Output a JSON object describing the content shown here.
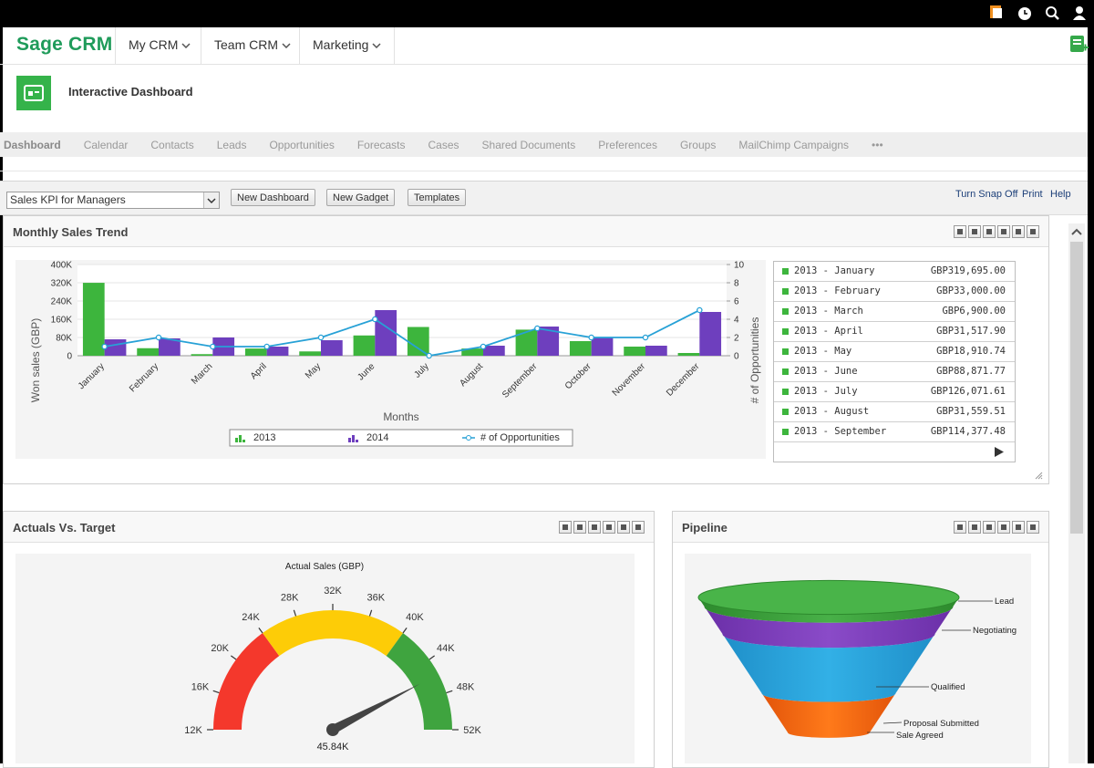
{
  "nav": {
    "logo": "Sage CRM",
    "menus": [
      "My CRM",
      "Team CRM",
      "Marketing"
    ]
  },
  "page_header": {
    "title": "Interactive Dashboard"
  },
  "tabs": [
    "Dashboard",
    "Calendar",
    "Contacts",
    "Leads",
    "Opportunities",
    "Forecasts",
    "Cases",
    "Shared Documents",
    "Preferences",
    "Groups",
    "MailChimp Campaigns",
    "•••"
  ],
  "toolbar": {
    "dashboard_select": "Sales KPI for Managers",
    "buttons": [
      "New Dashboard",
      "New Gadget",
      "Templates"
    ],
    "links": [
      "Turn Snap Off",
      "Print",
      "Help"
    ]
  },
  "gadgets": [
    {
      "title": "Monthly Sales Trend",
      "chart": {
        "type": "bar",
        "x_label": "Months",
        "y_label": "Won sales (GBP)",
        "y2_label": "# of Opportunities",
        "categories": [
          "January",
          "February",
          "March",
          "April",
          "May",
          "June",
          "July",
          "August",
          "September",
          "October",
          "November",
          "December"
        ],
        "series": [
          {
            "name": "2013",
            "color": "#3db53d",
            "values": [
              319695,
              33000,
              6900,
              31517.9,
              18910.74,
              88871.77,
              126071.61,
              31559.51,
              114377.48,
              64000,
              40000,
              12000
            ]
          },
          {
            "name": "2014",
            "color": "#6e3fbe",
            "values": [
              72000,
              76000,
              80000,
              40000,
              68000,
              200000,
              null,
              44000,
              128000,
              80000,
              44000,
              192000
            ]
          },
          {
            "name": "# of Opportunities",
            "color": "#27a1d6",
            "type": "line",
            "axis": "y2",
            "values": [
              1,
              2,
              1,
              1,
              2,
              4,
              0,
              1,
              3,
              2,
              2,
              5
            ]
          }
        ],
        "ylim": [
          0,
          400000
        ],
        "yticks": [
          0,
          {
            "value": 80000,
            "label": "80K"
          },
          {
            "value": 160000,
            "label": "160K"
          },
          {
            "value": 240000,
            "label": "240K"
          },
          {
            "value": 320000,
            "label": "320K"
          },
          {
            "value": 400000,
            "label": "400K"
          }
        ],
        "y2lim": [
          0,
          10
        ],
        "y2ticks": [
          0,
          2,
          4,
          6,
          8,
          10
        ],
        "grid": true
      },
      "summary_table": {
        "rows": [
          [
            "2013 - January",
            "GBP319,695.00"
          ],
          [
            "2013 - February",
            "GBP33,000.00"
          ],
          [
            "2013 - March",
            "GBP6,900.00"
          ],
          [
            "2013 - April",
            "GBP31,517.90"
          ],
          [
            "2013 - May",
            "GBP18,910.74"
          ],
          [
            "2013 - June",
            "GBP88,871.77"
          ],
          [
            "2013 - July",
            "GBP126,071.61"
          ],
          [
            "2013 - August",
            "GBP31,559.51"
          ],
          [
            "2013 - September",
            "GBP114,377.48"
          ]
        ]
      }
    },
    {
      "title": "Actuals Vs. Target",
      "chart": {
        "type": "gauge",
        "title": "Actual Sales (GBP)",
        "value": 45840,
        "value_label": "45.84K",
        "ylim": [
          12000,
          52000
        ],
        "yticks": [
          {
            "value": 12000,
            "label": "12K"
          },
          {
            "value": 16000,
            "label": "16K"
          },
          {
            "value": 20000,
            "label": "20K"
          },
          {
            "value": 24000,
            "label": "24K"
          },
          {
            "value": 28000,
            "label": "28K"
          },
          {
            "value": 32000,
            "label": "32K"
          },
          {
            "value": 36000,
            "label": "36K"
          },
          {
            "value": 40000,
            "label": "40K"
          },
          {
            "value": 44000,
            "label": "44K"
          },
          {
            "value": 48000,
            "label": "48K"
          },
          {
            "value": 52000,
            "label": "52K"
          }
        ],
        "bands": [
          {
            "from": 12000,
            "to": 24000,
            "color": "#f4382c"
          },
          {
            "from": 24000,
            "to": 40000,
            "color": "#fdcc07"
          },
          {
            "from": 40000,
            "to": 52000,
            "color": "#3fa43f"
          }
        ]
      }
    },
    {
      "title": "Pipeline",
      "chart": {
        "type": "funnel",
        "stages": [
          "Lead",
          "Negotiating",
          "Qualified",
          "Proposal Submitted",
          "Sale Agreed"
        ]
      }
    }
  ]
}
